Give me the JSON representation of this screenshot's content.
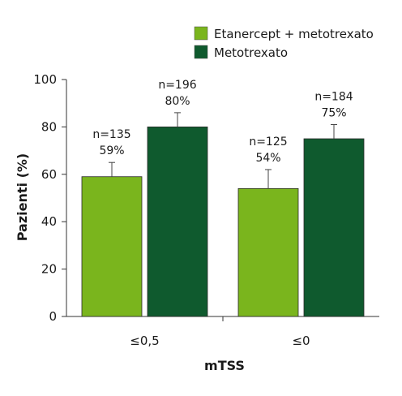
{
  "chart_data": {
    "type": "bar",
    "categories": [
      "≤0,5",
      "≤0"
    ],
    "series": [
      {
        "name": "Etanercept + metotrexato",
        "color": "#7ab51d",
        "values": [
          59,
          54
        ],
        "error_upper": [
          65,
          62
        ],
        "n_labels": [
          "n=135",
          "n=125"
        ],
        "pct_labels": [
          "59%",
          "54%"
        ]
      },
      {
        "name": "Metotrexato",
        "color": "#0f5a2e",
        "values": [
          80,
          75
        ],
        "error_upper": [
          86,
          81
        ],
        "n_labels": [
          "n=196",
          "n=184"
        ],
        "pct_labels": [
          "80%",
          "75%"
        ]
      }
    ],
    "xlabel": "mTSS",
    "ylabel": "Pazienti (%)",
    "ylim": [
      0,
      100
    ],
    "yticks": [
      "0",
      "20",
      "40",
      "60",
      "80",
      "100"
    ],
    "grid": false,
    "legend": "top-right"
  }
}
